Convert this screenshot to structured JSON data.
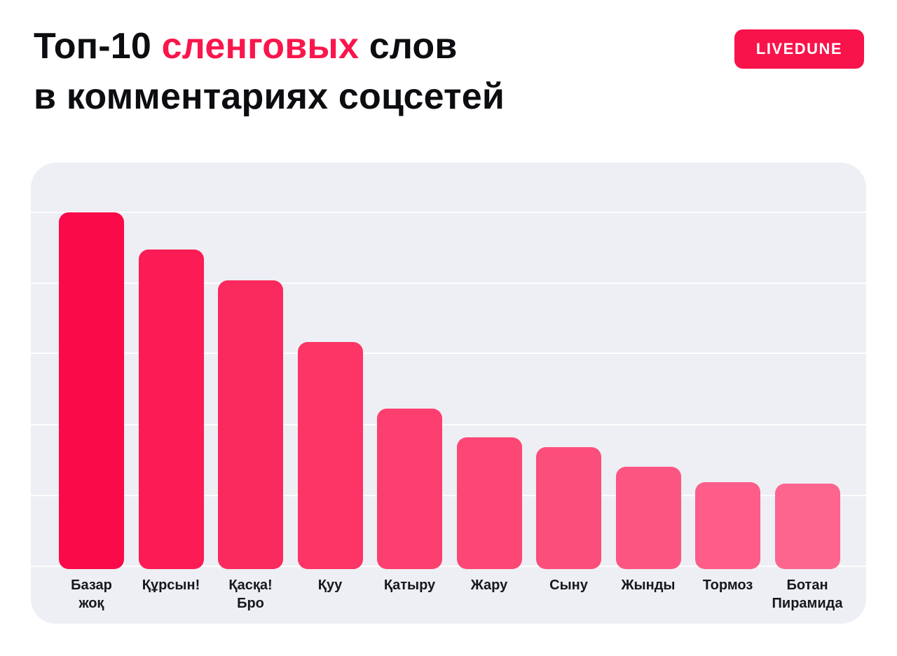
{
  "header": {
    "title_prefix": "Топ-10 ",
    "title_accent": "сленговых",
    "title_suffix": " слов",
    "title_line2": "в комментариях соцсетей",
    "badge_label": "LIVEDUNE",
    "accent_color": "#f9164c",
    "badge_color": "#f9134b"
  },
  "chart_data": {
    "type": "bar",
    "title": "Топ-10 сленговых слов в комментариях соцсетей",
    "xlabel": "",
    "ylabel": "",
    "value_labels_shown": false,
    "axis_tick_labels_shown": false,
    "grid": "horizontal faint lines, 6 levels, even spacing",
    "ylim_relative": [
      0,
      100
    ],
    "panel_background": "#edeff4",
    "gridline_color": "#f8f9fc",
    "categories": [
      "Базар жоқ",
      "Құрсын!",
      "Қасқа! Бро",
      "Қуу",
      "Қатыру",
      "Жару",
      "Сыну",
      "Жынды",
      "Тормоз",
      "Ботан Пирамида"
    ],
    "values_pct_of_max": [
      100,
      89.5,
      81,
      63.7,
      44.9,
      36.9,
      34.1,
      28.6,
      24.3,
      24
    ],
    "bars": [
      {
        "rank": 1,
        "label_lines": [
          "Базар",
          "жоқ"
        ],
        "value_pct": 100,
        "color": "#fa0a48"
      },
      {
        "rank": 2,
        "label_lines": [
          "Құрсын!"
        ],
        "value_pct": 89.5,
        "color": "#fb1c55"
      },
      {
        "rank": 3,
        "label_lines": [
          "Қасқа!",
          "Бро"
        ],
        "value_pct": 81,
        "color": "#fb2a5e"
      },
      {
        "rank": 4,
        "label_lines": [
          "Қуу"
        ],
        "value_pct": 63.7,
        "color": "#fc3566"
      },
      {
        "rank": 5,
        "label_lines": [
          "Қатыру"
        ],
        "value_pct": 44.9,
        "color": "#fc3f6e"
      },
      {
        "rank": 6,
        "label_lines": [
          "Жару"
        ],
        "value_pct": 36.9,
        "color": "#fc4775"
      },
      {
        "rank": 7,
        "label_lines": [
          "Сыну"
        ],
        "value_pct": 34.1,
        "color": "#fc4e7b"
      },
      {
        "rank": 8,
        "label_lines": [
          "Жынды"
        ],
        "value_pct": 28.6,
        "color": "#fd5581"
      },
      {
        "rank": 9,
        "label_lines": [
          "Тормоз"
        ],
        "value_pct": 24.3,
        "color": "#fd5d88"
      },
      {
        "rank": 10,
        "label_lines": [
          "Ботан",
          "Пирамида"
        ],
        "value_pct": 24,
        "color": "#fd658e"
      }
    ]
  }
}
